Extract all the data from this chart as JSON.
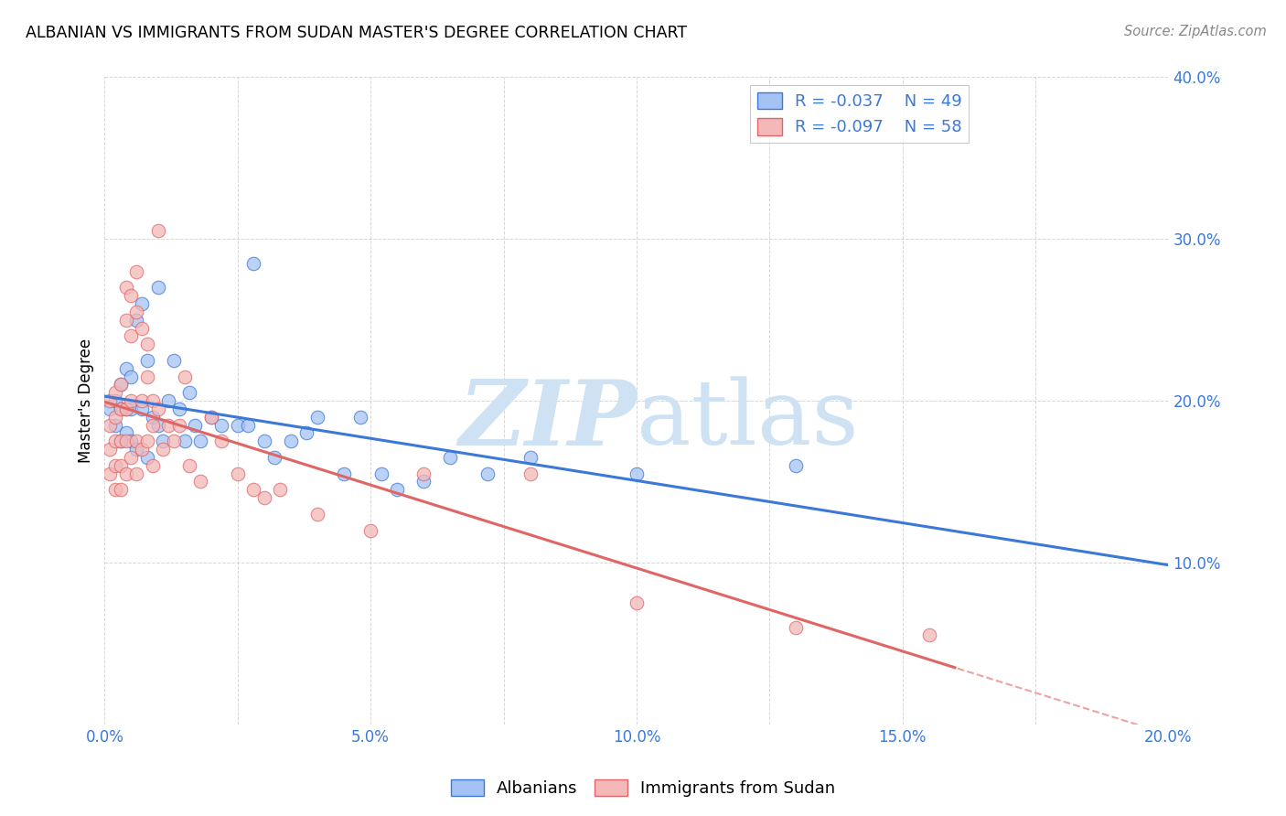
{
  "title": "ALBANIAN VS IMMIGRANTS FROM SUDAN MASTER'S DEGREE CORRELATION CHART",
  "source": "Source: ZipAtlas.com",
  "ylabel": "Master's Degree",
  "xlim": [
    0.0,
    0.2
  ],
  "ylim": [
    0.0,
    0.4
  ],
  "legend_r1": "-0.037",
  "legend_n1": "49",
  "legend_r2": "-0.097",
  "legend_n2": "58",
  "color_blue": "#a4c2f4",
  "color_pink": "#f4b8b8",
  "line_blue": "#3c78d8",
  "line_pink": "#e06666",
  "text_blue": "#3c78d8",
  "watermark_color": "#cfe2f3",
  "albanians_x": [
    0.001,
    0.002,
    0.002,
    0.003,
    0.003,
    0.003,
    0.004,
    0.004,
    0.004,
    0.005,
    0.005,
    0.005,
    0.006,
    0.006,
    0.007,
    0.007,
    0.008,
    0.008,
    0.009,
    0.01,
    0.01,
    0.011,
    0.012,
    0.013,
    0.014,
    0.015,
    0.016,
    0.017,
    0.018,
    0.02,
    0.022,
    0.025,
    0.027,
    0.03,
    0.035,
    0.038,
    0.04,
    0.045,
    0.048,
    0.052,
    0.06,
    0.065,
    0.072,
    0.08,
    0.1,
    0.028,
    0.032,
    0.055,
    0.13
  ],
  "albanians_y": [
    0.195,
    0.2,
    0.185,
    0.21,
    0.195,
    0.175,
    0.22,
    0.18,
    0.195,
    0.215,
    0.195,
    0.175,
    0.25,
    0.17,
    0.26,
    0.195,
    0.225,
    0.165,
    0.19,
    0.27,
    0.185,
    0.175,
    0.2,
    0.225,
    0.195,
    0.175,
    0.205,
    0.185,
    0.175,
    0.19,
    0.185,
    0.185,
    0.185,
    0.175,
    0.175,
    0.18,
    0.19,
    0.155,
    0.19,
    0.155,
    0.15,
    0.165,
    0.155,
    0.165,
    0.155,
    0.285,
    0.165,
    0.145,
    0.16
  ],
  "sudan_x": [
    0.001,
    0.001,
    0.001,
    0.001,
    0.002,
    0.002,
    0.002,
    0.002,
    0.002,
    0.003,
    0.003,
    0.003,
    0.003,
    0.003,
    0.004,
    0.004,
    0.004,
    0.004,
    0.004,
    0.005,
    0.005,
    0.005,
    0.005,
    0.006,
    0.006,
    0.006,
    0.006,
    0.007,
    0.007,
    0.007,
    0.008,
    0.008,
    0.008,
    0.009,
    0.009,
    0.009,
    0.01,
    0.01,
    0.011,
    0.012,
    0.013,
    0.014,
    0.015,
    0.016,
    0.018,
    0.02,
    0.022,
    0.025,
    0.028,
    0.03,
    0.033,
    0.04,
    0.05,
    0.06,
    0.08,
    0.1,
    0.13,
    0.155
  ],
  "sudan_y": [
    0.2,
    0.185,
    0.17,
    0.155,
    0.205,
    0.19,
    0.175,
    0.16,
    0.145,
    0.21,
    0.195,
    0.175,
    0.16,
    0.145,
    0.27,
    0.25,
    0.195,
    0.175,
    0.155,
    0.265,
    0.24,
    0.2,
    0.165,
    0.28,
    0.255,
    0.175,
    0.155,
    0.245,
    0.2,
    0.17,
    0.235,
    0.215,
    0.175,
    0.2,
    0.185,
    0.16,
    0.305,
    0.195,
    0.17,
    0.185,
    0.175,
    0.185,
    0.215,
    0.16,
    0.15,
    0.19,
    0.175,
    0.155,
    0.145,
    0.14,
    0.145,
    0.13,
    0.12,
    0.155,
    0.155,
    0.075,
    0.06,
    0.055
  ]
}
